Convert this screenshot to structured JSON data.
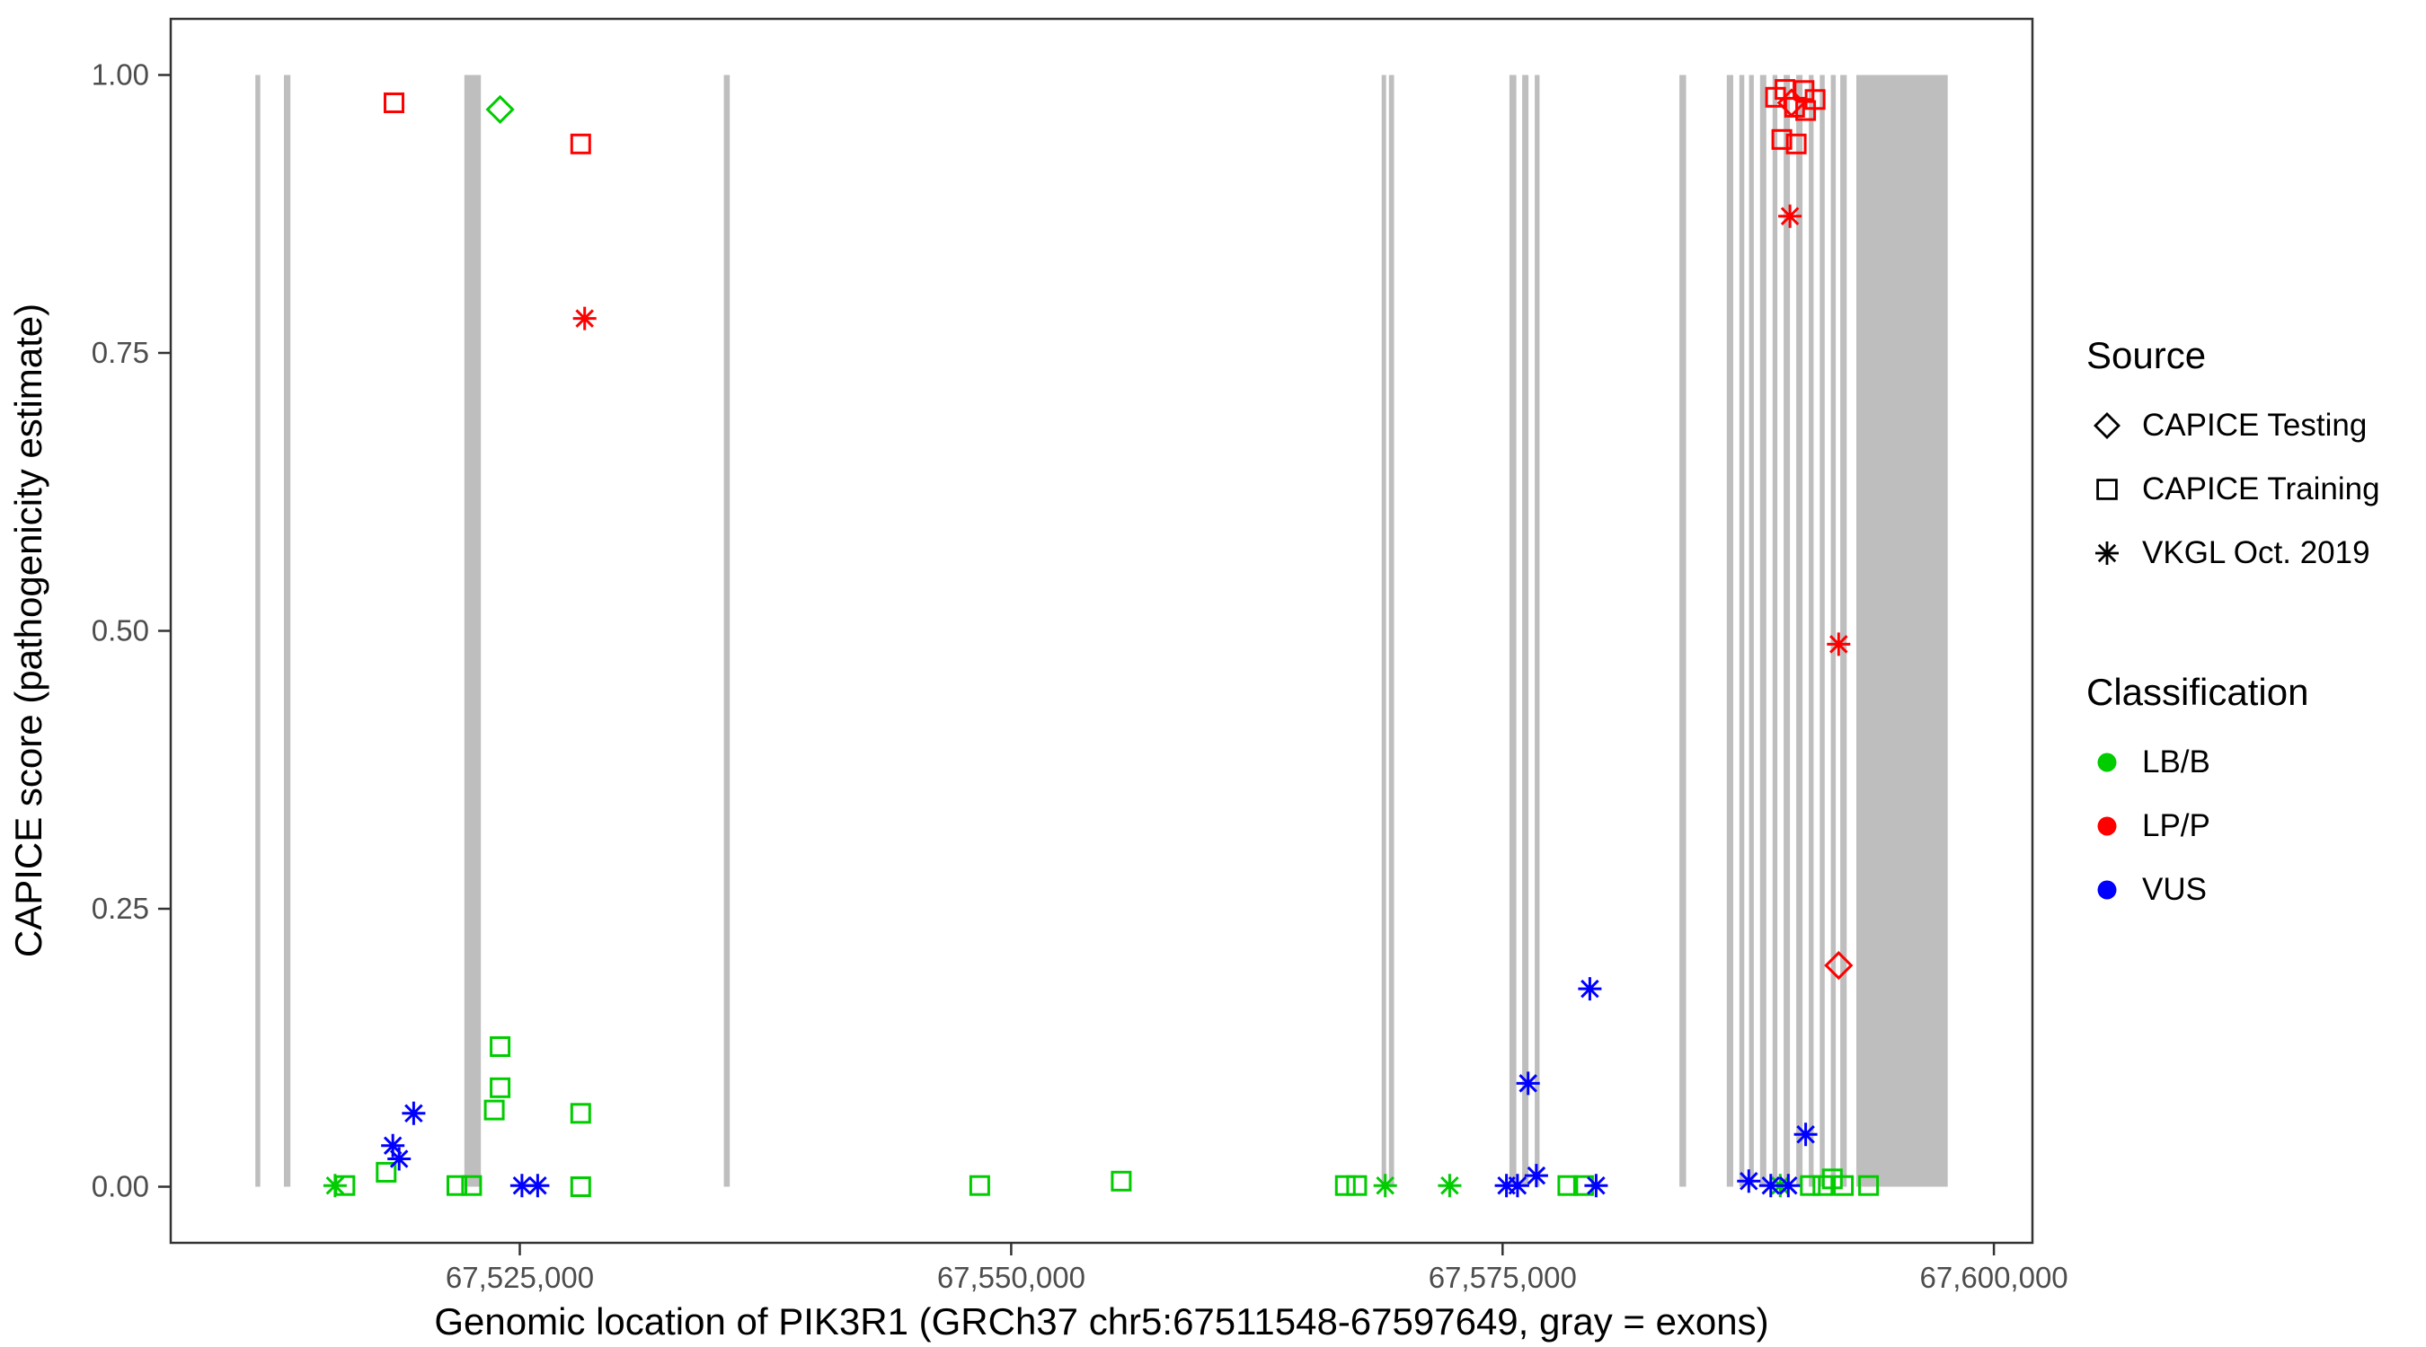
{
  "chart_data": {
    "type": "scatter",
    "title": "",
    "xlabel": "Genomic location of PIK3R1 (GRCh37 chr5:67511548-67597649, gray = exons)",
    "ylabel": "CAPICE score (pathogenicity estimate)",
    "xlim": [
      67507240,
      67601960
    ],
    "ylim": [
      -0.0505,
      1.0505
    ],
    "x_ticks": [
      67525000,
      67550000,
      67575000,
      67600000
    ],
    "x_tick_labels": [
      "67,525,000",
      "67,550,000",
      "67,575,000",
      "67,600,000"
    ],
    "y_ticks": [
      0,
      0.25,
      0.5,
      0.75,
      1
    ],
    "y_tick_labels": [
      "0.00",
      "0.25",
      "0.50",
      "0.75",
      "1.00"
    ],
    "grid": false,
    "panel_background": "#ffffff",
    "panel_border_color": "#333333",
    "axis_text_color": "#4d4d4d",
    "exon_color": "#bebebe",
    "exon_band": {
      "ymin": 0,
      "ymax": 1
    },
    "exons": [
      [
        67511548,
        67511800
      ],
      [
        67513000,
        67513330
      ],
      [
        67522180,
        67523020
      ],
      [
        67535380,
        67535680
      ],
      [
        67568850,
        67569080
      ],
      [
        67569220,
        67569480
      ],
      [
        67575350,
        67575700
      ],
      [
        67576000,
        67576320
      ],
      [
        67576640,
        67576880
      ],
      [
        67584000,
        67584340
      ],
      [
        67586410,
        67586740
      ],
      [
        67587050,
        67587300
      ],
      [
        67587540,
        67587780
      ],
      [
        67588100,
        67588420
      ],
      [
        67588740,
        67588980
      ],
      [
        67589300,
        67589620
      ],
      [
        67589940,
        67590260
      ],
      [
        67590580,
        67590820
      ],
      [
        67591140,
        67591390
      ],
      [
        67591700,
        67591950
      ],
      [
        67592180,
        67592510
      ],
      [
        67593000,
        67597649
      ]
    ],
    "legend": {
      "position": "right",
      "source": {
        "title": "Source",
        "items": [
          {
            "label": "CAPICE Testing",
            "shape": "diamond"
          },
          {
            "label": "CAPICE Training",
            "shape": "square"
          },
          {
            "label": "VKGL Oct. 2019",
            "shape": "asterisk"
          }
        ]
      },
      "classification": {
        "title": "Classification",
        "items": [
          {
            "label": "LB/B",
            "color": "#00cc00"
          },
          {
            "label": "LP/P",
            "color": "#ff0000"
          },
          {
            "label": "VUS",
            "color": "#0000ff"
          }
        ]
      }
    },
    "points": [
      {
        "x": 67518600,
        "y": 0.975,
        "source": "CAPICE Training",
        "class": "LP/P"
      },
      {
        "x": 67528100,
        "y": 0.938,
        "source": "CAPICE Training",
        "class": "LP/P"
      },
      {
        "x": 67528300,
        "y": 0.781,
        "source": "VKGL Oct. 2019",
        "class": "LP/P"
      },
      {
        "x": 67588890,
        "y": 0.98,
        "source": "CAPICE Training",
        "class": "LP/P"
      },
      {
        "x": 67589370,
        "y": 0.987,
        "source": "CAPICE Training",
        "class": "LP/P"
      },
      {
        "x": 67589700,
        "y": 0.975,
        "source": "CAPICE Testing",
        "class": "LP/P"
      },
      {
        "x": 67589860,
        "y": 0.971,
        "source": "CAPICE Training",
        "class": "LP/P"
      },
      {
        "x": 67590340,
        "y": 0.986,
        "source": "CAPICE Training",
        "class": "LP/P"
      },
      {
        "x": 67590420,
        "y": 0.968,
        "source": "CAPICE Training",
        "class": "LP/P"
      },
      {
        "x": 67590900,
        "y": 0.978,
        "source": "CAPICE Training",
        "class": "LP/P"
      },
      {
        "x": 67589210,
        "y": 0.942,
        "source": "CAPICE Training",
        "class": "LP/P"
      },
      {
        "x": 67589940,
        "y": 0.938,
        "source": "CAPICE Training",
        "class": "LP/P"
      },
      {
        "x": 67589620,
        "y": 0.873,
        "source": "VKGL Oct. 2019",
        "class": "LP/P"
      },
      {
        "x": 67592100,
        "y": 0.488,
        "source": "VKGL Oct. 2019",
        "class": "LP/P"
      },
      {
        "x": 67592100,
        "y": 0.199,
        "source": "CAPICE Testing",
        "class": "LP/P"
      },
      {
        "x": 67524000,
        "y": 0.969,
        "source": "CAPICE Testing",
        "class": "LB/B"
      },
      {
        "x": 67524000,
        "y": 0.126,
        "source": "CAPICE Training",
        "class": "LB/B"
      },
      {
        "x": 67524000,
        "y": 0.089,
        "source": "CAPICE Training",
        "class": "LB/B"
      },
      {
        "x": 67523700,
        "y": 0.069,
        "source": "CAPICE Training",
        "class": "LB/B"
      },
      {
        "x": 67528100,
        "y": 0.066,
        "source": "CAPICE Training",
        "class": "LB/B"
      },
      {
        "x": 67518200,
        "y": 0.013,
        "source": "CAPICE Training",
        "class": "LB/B"
      },
      {
        "x": 67515600,
        "y": 0.001,
        "source": "VKGL Oct. 2019",
        "class": "LB/B"
      },
      {
        "x": 67516100,
        "y": 0.001,
        "source": "CAPICE Training",
        "class": "LB/B"
      },
      {
        "x": 67521800,
        "y": 0.001,
        "source": "CAPICE Training",
        "class": "LB/B"
      },
      {
        "x": 67522550,
        "y": 0.001,
        "source": "CAPICE Training",
        "class": "LB/B"
      },
      {
        "x": 67528100,
        "y": 0.0,
        "source": "CAPICE Training",
        "class": "LB/B"
      },
      {
        "x": 67548400,
        "y": 0.001,
        "source": "CAPICE Training",
        "class": "LB/B"
      },
      {
        "x": 67555600,
        "y": 0.005,
        "source": "CAPICE Training",
        "class": "LB/B"
      },
      {
        "x": 67567000,
        "y": 0.001,
        "source": "CAPICE Training",
        "class": "LB/B"
      },
      {
        "x": 67567580,
        "y": 0.001,
        "source": "CAPICE Training",
        "class": "LB/B"
      },
      {
        "x": 67569030,
        "y": 0.001,
        "source": "VKGL Oct. 2019",
        "class": "LB/B"
      },
      {
        "x": 67572310,
        "y": 0.001,
        "source": "VKGL Oct. 2019",
        "class": "LB/B"
      },
      {
        "x": 67578320,
        "y": 0.001,
        "source": "CAPICE Training",
        "class": "LB/B"
      },
      {
        "x": 67579120,
        "y": 0.001,
        "source": "CAPICE Training",
        "class": "LB/B"
      },
      {
        "x": 67589130,
        "y": 0.001,
        "source": "VKGL Oct. 2019",
        "class": "LB/B"
      },
      {
        "x": 67590660,
        "y": 0.001,
        "source": "CAPICE Training",
        "class": "LB/B"
      },
      {
        "x": 67591300,
        "y": 0.001,
        "source": "CAPICE Training",
        "class": "LB/B"
      },
      {
        "x": 67591780,
        "y": 0.007,
        "source": "CAPICE Training",
        "class": "LB/B"
      },
      {
        "x": 67592340,
        "y": 0.001,
        "source": "CAPICE Training",
        "class": "LB/B"
      },
      {
        "x": 67593620,
        "y": 0.001,
        "source": "CAPICE Training",
        "class": "LB/B"
      },
      {
        "x": 67519600,
        "y": 0.066,
        "source": "VKGL Oct. 2019",
        "class": "VUS"
      },
      {
        "x": 67518540,
        "y": 0.037,
        "source": "VKGL Oct. 2019",
        "class": "VUS"
      },
      {
        "x": 67518860,
        "y": 0.025,
        "source": "VKGL Oct. 2019",
        "class": "VUS"
      },
      {
        "x": 67525110,
        "y": 0.001,
        "source": "VKGL Oct. 2019",
        "class": "VUS"
      },
      {
        "x": 67525910,
        "y": 0.001,
        "source": "VKGL Oct. 2019",
        "class": "VUS"
      },
      {
        "x": 67576300,
        "y": 0.093,
        "source": "VKGL Oct. 2019",
        "class": "VUS"
      },
      {
        "x": 67575200,
        "y": 0.001,
        "source": "VKGL Oct. 2019",
        "class": "VUS"
      },
      {
        "x": 67575760,
        "y": 0.001,
        "source": "VKGL Oct. 2019",
        "class": "VUS"
      },
      {
        "x": 67576720,
        "y": 0.01,
        "source": "VKGL Oct. 2019",
        "class": "VUS"
      },
      {
        "x": 67579440,
        "y": 0.178,
        "source": "VKGL Oct. 2019",
        "class": "VUS"
      },
      {
        "x": 67579760,
        "y": 0.001,
        "source": "VKGL Oct. 2019",
        "class": "VUS"
      },
      {
        "x": 67587530,
        "y": 0.005,
        "source": "VKGL Oct. 2019",
        "class": "VUS"
      },
      {
        "x": 67588650,
        "y": 0.001,
        "source": "VKGL Oct. 2019",
        "class": "VUS"
      },
      {
        "x": 67589540,
        "y": 0.001,
        "source": "VKGL Oct. 2019",
        "class": "VUS"
      },
      {
        "x": 67590420,
        "y": 0.047,
        "source": "VKGL Oct. 2019",
        "class": "VUS"
      }
    ]
  }
}
